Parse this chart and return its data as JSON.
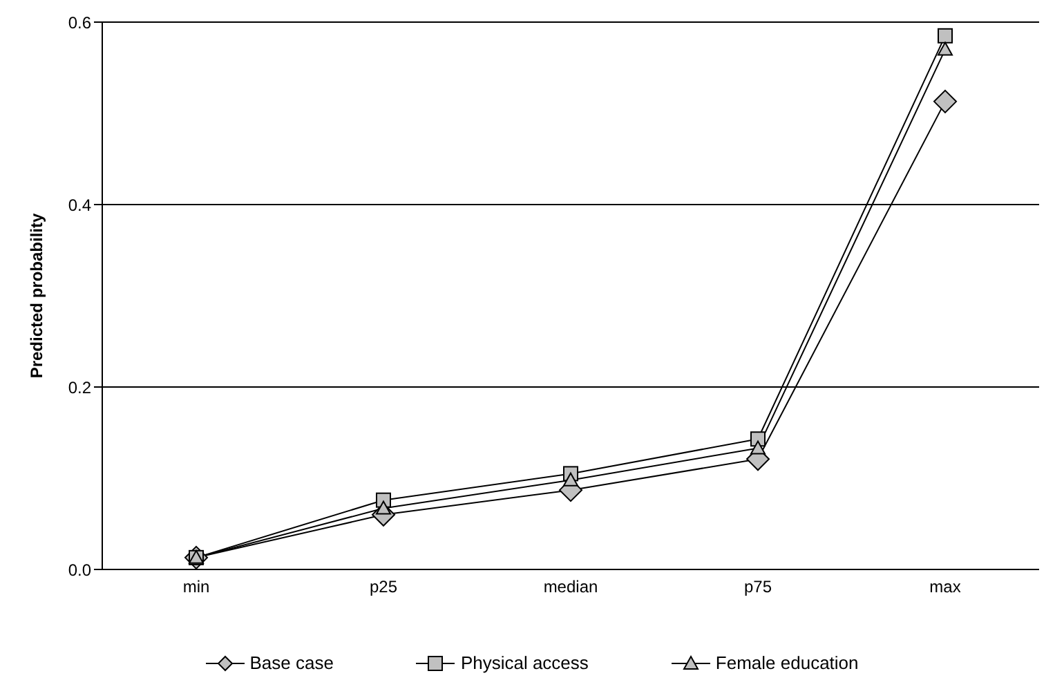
{
  "chart_data": {
    "type": "line",
    "ylabel": "Predicted probability",
    "categories": [
      "min",
      "p25",
      "median",
      "p75",
      "max"
    ],
    "series": [
      {
        "name": "Base case",
        "color": "#000000",
        "marker": "diamond",
        "values": [
          0.013,
          0.06,
          0.087,
          0.121,
          0.513
        ]
      },
      {
        "name": "Physical access",
        "color": "#000000",
        "marker": "square",
        "values": [
          0.013,
          0.076,
          0.105,
          0.143,
          0.585
        ]
      },
      {
        "name": "Female education",
        "color": "#000000",
        "marker": "triangle",
        "values": [
          0.013,
          0.067,
          0.098,
          0.133,
          0.57
        ]
      }
    ],
    "ylim": [
      0,
      0.6
    ],
    "yticks": [
      {
        "value": 0,
        "label": "0.0"
      },
      {
        "value": 0.2,
        "label": "0.2"
      },
      {
        "value": 0.4,
        "label": "0.4"
      },
      {
        "value": 0.6,
        "label": "0.6"
      }
    ],
    "grid": "y",
    "legend": "bottom"
  }
}
